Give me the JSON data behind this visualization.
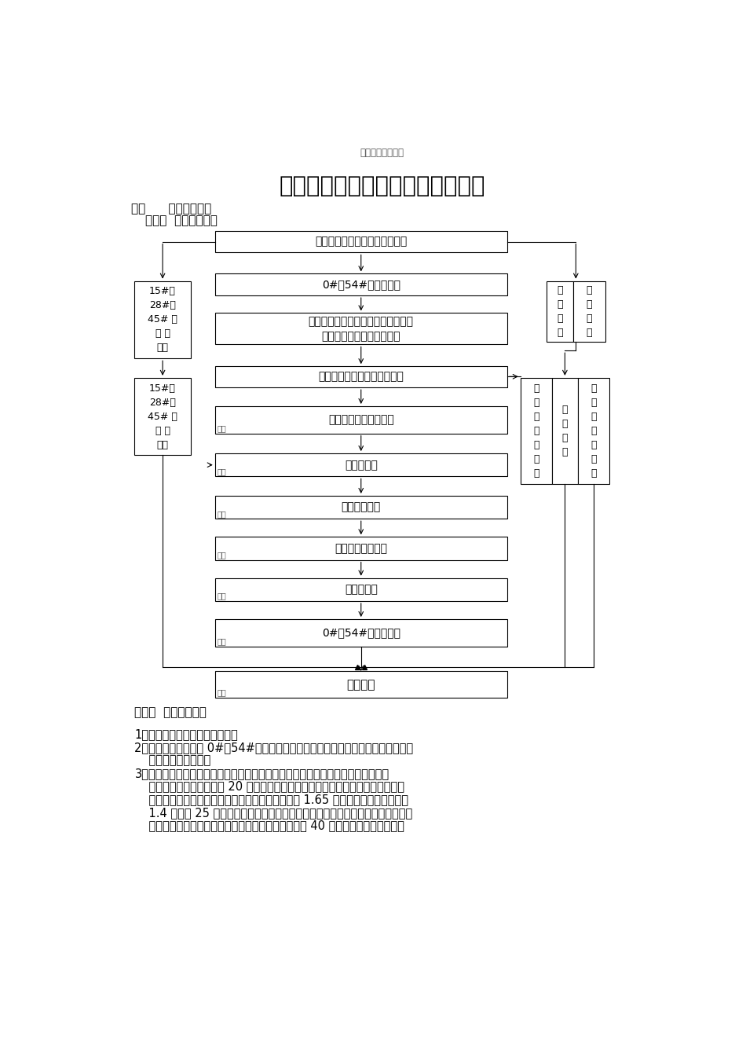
{
  "watermark": "下载后可任意编辑",
  "title": "北海高架桥加固维护工程施工方案",
  "section1": "一、      总体施工概述",
  "subsection1": "（一）  总体施工顺序",
  "subsection2": "（二）  总体施工方案",
  "top_box": "北海高架桥南北桥双向道路封闭",
  "center_boxes": [
    {
      "text": "0#、54#伸缩缝拆除",
      "sublabel": ""
    },
    {
      "text": "南侧背墙、南北两侧桥头搭板、枕梁\n及防撞墙、挡墙、路面拆除",
      "sublabel": ""
    },
    {
      "text": "南侧背墙、南北两侧挡墙重建",
      "sublabel": ""
    },
    {
      "text": "路床碾压、铺设砂垫层",
      "sublabel": "结论"
    },
    {
      "text": "摊铺水稳层",
      "sublabel": "结论"
    },
    {
      "text": "南侧枕梁重建",
      "sublabel": "结论"
    },
    {
      "text": "南侧桥头搭板重建",
      "sublabel": "结论"
    },
    {
      "text": "摊铺沥青层",
      "sublabel": "结论"
    },
    {
      "text": "0#、54#伸缩缝重建",
      "sublabel": "结论"
    }
  ],
  "bottom_box": "开放交通",
  "bottom_sublabel": "结论",
  "left_top_text": "15#、\n28#、\n45# 伸\n缩 缝\n拆除",
  "left_bot_text": "15#、\n28#、\n45# 伸\n缩 缝\n重建",
  "right_top_left_text": "破\n防\n撞\n墙",
  "right_top_right_text": "损\n撞\n修\n复",
  "right_mid_left_text": "防\n撞\n墙\n预\n制\n安\n装",
  "right_mid_center_text": "灌\n孔\n建\n安",
  "right_mid_right_text": "水\n新\n及\n装\n水\n管\n道",
  "body_text_1": "1、按道路封闭示意图封闭交通；",
  "body_text_2a": "2、用挖掘机炮锤破除 0#、54#桥梁伸缩缝，人工清理破除的砼残渣和钢筋及金属构",
  "body_text_2b": "    件，运离施工现场。",
  "body_text_3a": "3、原南侧桥台桥头搭板及枕梁应首先进行拆除，然后挖除路面及墙后填土（先用挖",
  "body_text_3b": "    掘机拆除至高于设计标高 20 厘米处停止，然后用人工挖掘至设计标高），拆除至",
  "body_text_3c": "    设计标高后再拆除南侧桥台背墙（设计拆除高度为 1.65 米，先用挖掘机炮锤拆除",
  "body_text_3d": "    1.4 米，后 25 厘米采纳人工加风镐拆除至设计指定高度）；最后用挖掘机炮锤拆",
  "body_text_3e": "    除南北两侧钢筋砼挡墙和防撞墙（南北双向左右幅各 40 米），并将所有施工凿除",
  "bg_color": "#ffffff"
}
